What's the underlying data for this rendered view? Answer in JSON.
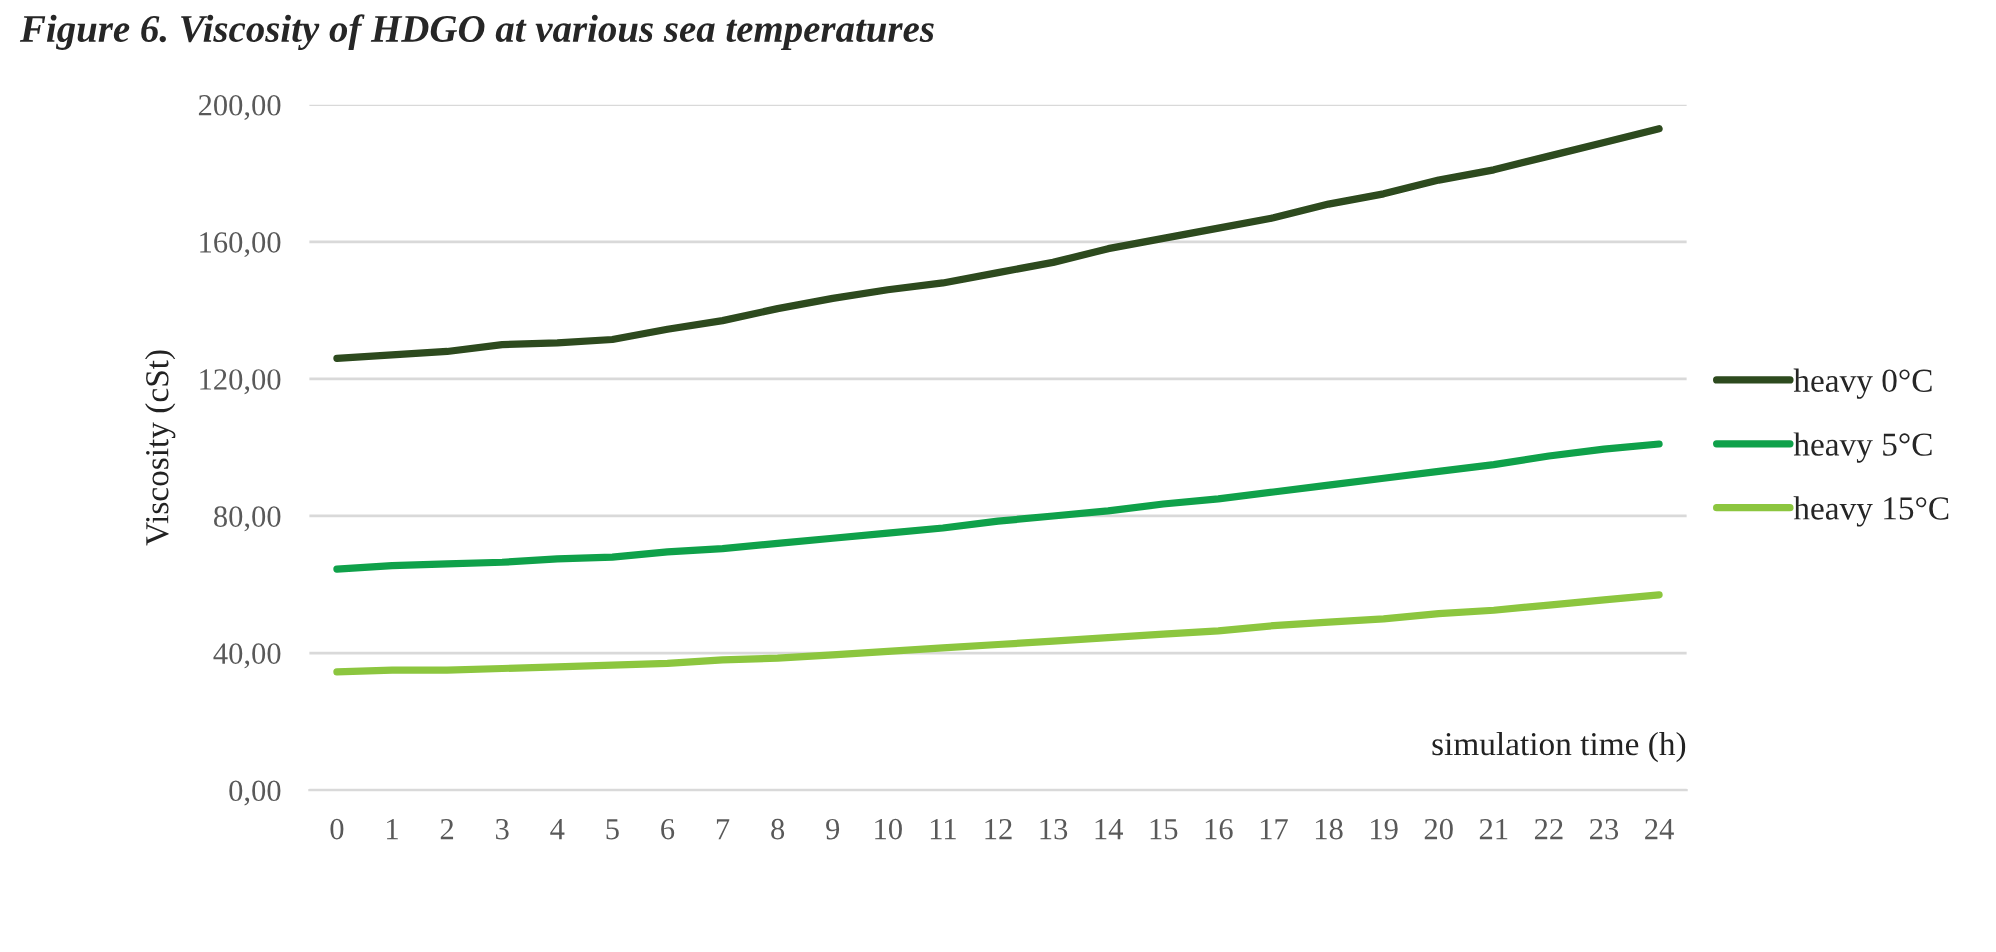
{
  "chart_data": {
    "type": "line",
    "title": "Figure 6. Viscosity of HDGO at various sea temperatures",
    "xlabel": "simulation time (h)",
    "ylabel": "Viscosity (cSt)",
    "categories": [
      "0",
      "1",
      "2",
      "3",
      "4",
      "5",
      "6",
      "7",
      "8",
      "9",
      "10",
      "11",
      "12",
      "13",
      "14",
      "15",
      "16",
      "17",
      "18",
      "19",
      "20",
      "21",
      "22",
      "23",
      "24"
    ],
    "ylim": [
      0,
      200
    ],
    "yticks": [
      {
        "value": 0,
        "label": "0,00"
      },
      {
        "value": 40,
        "label": "40,00"
      },
      {
        "value": 80,
        "label": "80,00"
      },
      {
        "value": 120,
        "label": "120,00"
      },
      {
        "value": 160,
        "label": "160,00"
      },
      {
        "value": 200,
        "label": "200,00"
      }
    ],
    "grid": "y",
    "legend": "right",
    "marker": "none",
    "line_style": "solid",
    "series": [
      {
        "name": "heavy 0°C",
        "color": "#2d4a1e",
        "values": [
          126,
          127,
          128,
          130,
          130.5,
          131.5,
          134.5,
          137,
          140.5,
          143.5,
          146,
          148,
          151,
          154,
          158,
          161,
          164,
          167,
          171,
          174,
          178,
          181,
          185,
          189,
          193
        ]
      },
      {
        "name": "heavy 5°C",
        "color": "#0fa14a",
        "values": [
          64.5,
          65.5,
          66,
          66.5,
          67.5,
          68,
          69.5,
          70.5,
          72,
          73.5,
          75,
          76.5,
          78.5,
          80,
          81.5,
          83.5,
          85,
          87,
          89,
          91,
          93,
          95,
          97.5,
          99.5,
          101
        ]
      },
      {
        "name": "heavy 15°C",
        "color": "#8cc63f",
        "values": [
          34.5,
          35,
          35,
          35.5,
          36,
          36.5,
          37,
          38,
          38.5,
          39.5,
          40.5,
          41.5,
          42.5,
          43.5,
          44.5,
          45.5,
          46.5,
          48,
          49,
          50,
          51.5,
          52.5,
          54,
          55.5,
          57
        ]
      }
    ]
  }
}
